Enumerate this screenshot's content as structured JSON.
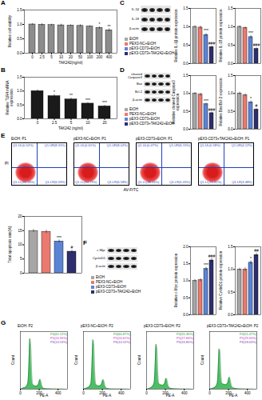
{
  "chart_data": [
    {
      "panel": "A",
      "type": "bar",
      "categories": [
        "0",
        "2.5",
        "5",
        "10",
        "20",
        "50",
        "100",
        "200",
        "400"
      ],
      "values": [
        1.0,
        0.99,
        0.98,
        0.97,
        0.96,
        0.95,
        0.93,
        0.88,
        0.8
      ],
      "errors": [
        0.03,
        0.04,
        0.03,
        0.04,
        0.03,
        0.04,
        0.03,
        0.04,
        0.05
      ],
      "color": "#8c8c8c",
      "xlabel": "TAK242(ng/ml)",
      "ylabel": "Relative cell viability",
      "ylim": [
        0,
        1.5
      ],
      "yticks": [
        {
          "value": 0,
          "label": "0.0"
        },
        {
          "value": 0.5,
          "label": "0.5"
        },
        {
          "value": 1,
          "label": "1.0"
        },
        {
          "value": 1.5,
          "label": "1.5"
        }
      ],
      "annotations": [
        {
          "category": "200",
          "text": "*"
        },
        {
          "category": "400",
          "text": "**"
        }
      ]
    },
    {
      "panel": "B",
      "type": "bar",
      "categories": [
        "0",
        "2.5",
        "5",
        "10",
        "20"
      ],
      "values": [
        1.0,
        0.82,
        0.7,
        0.55,
        0.45
      ],
      "errors": [
        0.05,
        0.06,
        0.05,
        0.04,
        0.04
      ],
      "color": "#1a1a1a",
      "xlabel": "TAK242 (ng/ml)",
      "ylabel": "Relative TLR4 mRNA expression",
      "ylim": [
        0,
        1.5
      ],
      "yticks": [
        {
          "value": 0,
          "label": "0.0"
        },
        {
          "value": 0.5,
          "label": "0.5"
        },
        {
          "value": 1,
          "label": "1.0"
        },
        {
          "value": 1.5,
          "label": "1.5"
        }
      ],
      "annotations": [
        {
          "category": "2.5",
          "text": "*"
        },
        {
          "category": "5",
          "text": "**"
        },
        {
          "category": "10",
          "text": "***"
        },
        {
          "category": "20",
          "text": "***"
        }
      ]
    },
    {
      "panel": "C",
      "type": "blot",
      "bands": [
        "IL-1β",
        "IL-18",
        "β-actin"
      ],
      "groups": [
        "EtOH",
        "PEX3-NC+EtOH",
        "pEX3-CD73+EtOH",
        "pEX3-CD73+TAK242+EtOH"
      ],
      "colors": [
        "#a6a6a6",
        "#ea7a70",
        "#5b84d6",
        "#2e2e6e"
      ]
    },
    {
      "type": "bar",
      "categories": [
        "EtOH",
        "PEX3-NC+EtOH",
        "pEX3-CD73+EtOH",
        "pEX3-CD73+TAK242+EtOH"
      ],
      "values": [
        1.0,
        0.98,
        0.78,
        0.45
      ],
      "errors": [
        0.03,
        0.04,
        0.04,
        0.03
      ],
      "colors": [
        "#a6a6a6",
        "#ea7a70",
        "#5b84d6",
        "#2e2e6e"
      ],
      "tick_labels": "y",
      "ylabel": "Relative IL-1β protein expression",
      "ylim": [
        0,
        1.5
      ],
      "yticks": [
        {
          "value": 0,
          "label": "0.0"
        },
        {
          "value": 0.5,
          "label": "0.5"
        },
        {
          "value": 1,
          "label": "1.0"
        },
        {
          "value": 1.5,
          "label": "1.5"
        }
      ],
      "annotations": [
        {
          "category": "pEX3-CD73+EtOH",
          "text": "***"
        },
        {
          "category": "pEX3-CD73+TAK242+EtOH",
          "text": "###"
        }
      ]
    },
    {
      "type": "bar",
      "categories": [
        "EtOH",
        "PEX3-NC+EtOH",
        "pEX3-CD73+EtOH",
        "pEX3-CD73+TAK242+EtOH"
      ],
      "values": [
        1.0,
        0.97,
        0.72,
        0.4
      ],
      "errors": [
        0.03,
        0.03,
        0.04,
        0.03
      ],
      "colors": [
        "#a6a6a6",
        "#ea7a70",
        "#5b84d6",
        "#2e2e6e"
      ],
      "tick_labels": "y",
      "ylabel": "Relative IL-18 protein expression",
      "ylim": [
        0,
        1.5
      ],
      "yticks": [
        {
          "value": 0,
          "label": "0.0"
        },
        {
          "value": 0.5,
          "label": "0.5"
        },
        {
          "value": 1,
          "label": "1.0"
        },
        {
          "value": 1.5,
          "label": "1.5"
        }
      ],
      "annotations": [
        {
          "category": "pEX3-CD73+EtOH",
          "text": "***"
        },
        {
          "category": "pEX3-CD73+TAK242+EtOH",
          "text": "###"
        }
      ]
    },
    {
      "panel": "D",
      "type": "blot",
      "bands": [
        "cleaved Caspase3",
        "Bax",
        "Bcl-2",
        "β-actin"
      ],
      "groups": [
        "EtOH",
        "PEX3-NC+EtOH",
        "pEX3-CD73+EtOH",
        "pEX3-CD73+TAK242+EtOH"
      ],
      "colors": [
        "#a6a6a6",
        "#ea7a70",
        "#5b84d6",
        "#2e2e6e"
      ]
    },
    {
      "type": "bar",
      "categories": [
        "EtOH",
        "PEX3-NC+EtOH",
        "pEX3-CD73+EtOH",
        "pEX3-CD73+TAK242+EtOH"
      ],
      "values": [
        1.0,
        0.97,
        0.7,
        0.45
      ],
      "errors": [
        0.03,
        0.04,
        0.03,
        0.03
      ],
      "colors": [
        "#a6a6a6",
        "#ea7a70",
        "#5b84d6",
        "#2e2e6e"
      ],
      "tick_labels": "y",
      "ylabel": "Relative cleaved Caspase3 expression",
      "ylim": [
        0,
        1.5
      ],
      "yticks": [
        {
          "value": 0,
          "label": "0.0"
        },
        {
          "value": 0.5,
          "label": "0.5"
        },
        {
          "value": 1,
          "label": "1.0"
        },
        {
          "value": 1.5,
          "label": "1.5"
        }
      ],
      "annotations": [
        {
          "category": "pEX3-CD73+EtOH",
          "text": "***"
        },
        {
          "category": "pEX3-CD73+TAK242+EtOH",
          "text": "###"
        }
      ]
    },
    {
      "type": "bar",
      "categories": [
        "EtOH",
        "PEX3-NC+EtOH",
        "pEX3-CD73+EtOH",
        "pEX3-CD73+TAK242+EtOH"
      ],
      "values": [
        1.0,
        0.95,
        0.75,
        0.55
      ],
      "errors": [
        0.04,
        0.04,
        0.04,
        0.03
      ],
      "colors": [
        "#a6a6a6",
        "#ea7a70",
        "#5b84d6",
        "#2e2e6e"
      ],
      "tick_labels": "y",
      "ylabel": "Relative Bax/Bcl-2 expression",
      "ylim": [
        0,
        1.5
      ],
      "yticks": [
        {
          "value": 0,
          "label": "0.0"
        },
        {
          "value": 0.5,
          "label": "0.5"
        },
        {
          "value": 1,
          "label": "1.0"
        },
        {
          "value": 1.5,
          "label": "1.5"
        }
      ],
      "annotations": [
        {
          "category": "pEX3-CD73+EtOH",
          "text": "*"
        },
        {
          "category": "pEX3-CD73+TAK242+EtOH",
          "text": "#"
        }
      ]
    },
    {
      "panel": "E",
      "type": "flow",
      "xlabel": "AV-FITC",
      "ylabel": "PI",
      "plots": [
        {
          "title": "EtOH: P1",
          "quadrants": [
            "Q1-UL(0.52%)",
            "Q1-UR(8.31%)",
            "Q1-LL(84.58%)",
            "Q1-LR(6.59%)"
          ]
        },
        {
          "title": "pEX3-NC+EtOH: P1",
          "quadrants": [
            "Q1-UL(0.61%)",
            "Q1-UR(8.02%)",
            "Q1-LL(84.79%)",
            "Q1-LR(6.58%)"
          ]
        },
        {
          "title": "pEX3-CD73+EtOH: P1",
          "quadrants": [
            "Q1-UL(0.47%)",
            "Q1-UR(6.15%)",
            "Q1-LL(88.33%)",
            "Q1-LR(5.05%)"
          ]
        },
        {
          "title": "pEX3-CD73+TAK242+EtOH: P1",
          "quadrants": [
            "Q1-UL(0.58%)",
            "Q1-UR(4.12%)",
            "Q1-LL(91.82%)",
            "Q1-LR(3.48%)"
          ]
        }
      ]
    },
    {
      "type": "bar",
      "categories": [
        "EtOH",
        "PEX3-NC+EtOH",
        "pEX3-CD73+EtOH",
        "pEX3-CD73+TAK242+EtOH"
      ],
      "values": [
        14.9,
        14.6,
        11.2,
        7.6
      ],
      "errors": [
        0.5,
        0.6,
        0.5,
        0.5
      ],
      "colors": [
        "#a6a6a6",
        "#ea7a70",
        "#5b84d6",
        "#2e2e6e"
      ],
      "tick_labels": "y",
      "ylabel": "Total apoptosis rate(%)",
      "ylim": [
        0,
        20
      ],
      "yticks": [
        0,
        5,
        10,
        15,
        20
      ],
      "annotations": [
        {
          "category": "pEX3-CD73+EtOH",
          "text": "***"
        },
        {
          "category": "pEX3-CD73+TAK242+EtOH",
          "text": "#"
        }
      ]
    },
    {
      "panel": "F",
      "type": "blot",
      "bands": [
        "c-Myc",
        "CyclinD1",
        "β-actin"
      ],
      "groups": [
        "EtOH",
        "PEX3-NC+EtOH",
        "pEX3-CD73+EtOH",
        "pEX3-CD73+TAK242+EtOH"
      ],
      "colors": [
        "#a6a6a6",
        "#ea7a70",
        "#5b84d6",
        "#2e2e6e"
      ]
    },
    {
      "type": "bar",
      "categories": [
        "EtOH",
        "PEX3-NC+EtOH",
        "pEX3-CD73+EtOH",
        "pEX3-CD73+TAK242+EtOH"
      ],
      "values": [
        1.0,
        1.02,
        1.35,
        1.6
      ],
      "errors": [
        0.04,
        0.05,
        0.05,
        0.06
      ],
      "colors": [
        "#a6a6a6",
        "#ea7a70",
        "#5b84d6",
        "#2e2e6e"
      ],
      "tick_labels": "y",
      "ylabel": "Relative c-Myc protein expression",
      "ylim": [
        0,
        2
      ],
      "yticks": [
        {
          "value": 0,
          "label": "0.0"
        },
        {
          "value": 0.5,
          "label": "0.5"
        },
        {
          "value": 1,
          "label": "1.0"
        },
        {
          "value": 1.5,
          "label": "1.5"
        },
        {
          "value": 2,
          "label": "2.0"
        }
      ],
      "annotations": [
        {
          "category": "pEX3-CD73+EtOH",
          "text": "***"
        },
        {
          "category": "pEX3-CD73+TAK242+EtOH",
          "text": "###"
        }
      ]
    },
    {
      "type": "bar",
      "categories": [
        "EtOH",
        "PEX3-NC+EtOH",
        "pEX3-CD73+EtOH",
        "pEX3-CD73+TAK242+EtOH"
      ],
      "values": [
        1.0,
        1.0,
        1.15,
        1.32
      ],
      "errors": [
        0.03,
        0.04,
        0.04,
        0.04
      ],
      "colors": [
        "#a6a6a6",
        "#ea7a70",
        "#5b84d6",
        "#2e2e6e"
      ],
      "tick_labels": "y",
      "ylabel": "Relative CyclinD1 protein expression",
      "ylim": [
        0,
        1.5
      ],
      "yticks": [
        {
          "value": 0,
          "label": "0.0"
        },
        {
          "value": 0.5,
          "label": "0.5"
        },
        {
          "value": 1,
          "label": "1.0"
        },
        {
          "value": 1.5,
          "label": "1.5"
        }
      ],
      "annotations": [
        {
          "category": "pEX3-CD73+EtOH",
          "text": "*"
        },
        {
          "category": "pEX3-CD73+TAK242+EtOH",
          "text": "##"
        }
      ]
    },
    {
      "panel": "G",
      "type": "area",
      "title": "EtOH: P2",
      "xlabel": "PE-A",
      "ylabel": "Count",
      "color": "#2db34a",
      "tick_labels": "x",
      "x": [
        0,
        20,
        40,
        60,
        80,
        90,
        100,
        110,
        120,
        130,
        150,
        170,
        190,
        200,
        210,
        220,
        230,
        250,
        300,
        400,
        500
      ],
      "values": [
        0,
        15,
        25,
        40,
        120,
        420,
        880,
        760,
        300,
        90,
        60,
        55,
        80,
        140,
        170,
        120,
        50,
        15,
        6,
        2,
        0
      ],
      "xlim": [
        0,
        500
      ],
      "xticks": [
        0,
        200,
        400
      ],
      "ylim": [
        0,
        1000
      ],
      "labels": [
        {
          "text": "P4(61.12%)",
          "color": "#1f9a3a"
        },
        {
          "text": "P5(24.35%)",
          "color": "#c030c0"
        },
        {
          "text": "P6(14.53%)",
          "color": "#7a3fb5"
        }
      ]
    },
    {
      "type": "area",
      "title": "pEX3-NC+EtOH: P2",
      "xlabel": "PE-A",
      "ylabel": "Count",
      "color": "#2db34a",
      "tick_labels": "x",
      "x": [
        0,
        20,
        40,
        60,
        80,
        90,
        100,
        110,
        120,
        130,
        150,
        170,
        190,
        200,
        210,
        220,
        230,
        250,
        300,
        400,
        500
      ],
      "values": [
        0,
        14,
        24,
        42,
        115,
        430,
        860,
        770,
        290,
        95,
        62,
        56,
        82,
        138,
        165,
        118,
        48,
        14,
        5,
        2,
        0
      ],
      "xlim": [
        0,
        500
      ],
      "xticks": [
        0,
        200,
        400
      ],
      "ylim": [
        0,
        1000
      ],
      "labels": [
        {
          "text": "P4(60.87%)",
          "color": "#1f9a3a"
        },
        {
          "text": "P5(24.61%)",
          "color": "#c030c0"
        },
        {
          "text": "P6(14.52%)",
          "color": "#7a3fb5"
        }
      ]
    },
    {
      "type": "area",
      "title": "pEX3-CD73+EtOH: P2",
      "xlabel": "PE-A",
      "ylabel": "Count",
      "color": "#2db34a",
      "tick_labels": "x",
      "x": [
        0,
        20,
        40,
        60,
        80,
        90,
        100,
        110,
        120,
        130,
        150,
        170,
        190,
        200,
        210,
        220,
        230,
        250,
        300,
        400,
        500
      ],
      "values": [
        0,
        12,
        22,
        45,
        110,
        380,
        780,
        700,
        270,
        100,
        75,
        70,
        95,
        160,
        190,
        135,
        58,
        18,
        7,
        2,
        0
      ],
      "xlim": [
        0,
        500
      ],
      "xticks": [
        0,
        200,
        400
      ],
      "ylim": [
        0,
        1000
      ],
      "labels": [
        {
          "text": "P4(55.36%)",
          "color": "#1f9a3a"
        },
        {
          "text": "P5(27.84%)",
          "color": "#c030c0"
        },
        {
          "text": "P6(16.80%)",
          "color": "#7a3fb5"
        }
      ]
    },
    {
      "type": "area",
      "title": "pEX3-CD73+TAK242+EtOH: P2",
      "xlabel": "PE-A",
      "ylabel": "Count",
      "color": "#2db34a",
      "tick_labels": "x",
      "x": [
        0,
        20,
        40,
        60,
        80,
        90,
        100,
        110,
        120,
        130,
        150,
        170,
        190,
        200,
        210,
        220,
        230,
        250,
        300,
        400,
        500
      ],
      "values": [
        0,
        10,
        20,
        40,
        100,
        340,
        700,
        640,
        250,
        105,
        85,
        80,
        105,
        175,
        210,
        150,
        65,
        20,
        8,
        2,
        0
      ],
      "xlim": [
        0,
        500
      ],
      "xticks": [
        0,
        200,
        400
      ],
      "ylim": [
        0,
        1000
      ],
      "labels": [
        {
          "text": "P4(51.47%)",
          "color": "#1f9a3a"
        },
        {
          "text": "P5(29.90%)",
          "color": "#c030c0"
        },
        {
          "text": "P6(18.63%)",
          "color": "#7a3fb5"
        }
      ]
    }
  ]
}
